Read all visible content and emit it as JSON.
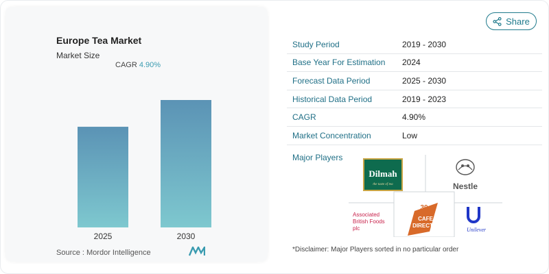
{
  "share": {
    "label": "Share",
    "icon": "share-icon"
  },
  "chart_card": {
    "title": "Europe Tea Market",
    "subtitle": "Market Size",
    "cagr_label": "CAGR",
    "cagr_value": "4.90%",
    "source": "Source : Mordor Intelligence",
    "brand": "Mordor Intelligence logo"
  },
  "chart_data": {
    "type": "bar",
    "categories": [
      "2025",
      "2030"
    ],
    "values": [
      0.79,
      1.0
    ],
    "value_note": "relative bar heights, no numeric axis shown",
    "title": "Europe Tea Market",
    "subtitle": "Market Size",
    "xlabel": "",
    "ylabel": "",
    "grid": false,
    "colors": {
      "bar_top": "#5b93b5",
      "bar_bottom": "#7ec8cf"
    }
  },
  "table": {
    "rows": [
      {
        "label": "Study Period",
        "value": "2019 - 2030"
      },
      {
        "label": "Base Year For Estimation",
        "value": "2024"
      },
      {
        "label": "Forecast Data Period",
        "value": "2025 - 2030"
      },
      {
        "label": "Historical Data Period",
        "value": "2019 - 2023"
      },
      {
        "label": "CAGR",
        "value": "4.90%"
      },
      {
        "label": "Market Concentration",
        "value": "Low"
      }
    ]
  },
  "players": {
    "label": "Major Players",
    "logos": [
      {
        "name": "Dilmah",
        "tagline": "the taste of tea"
      },
      {
        "name": "Nestle"
      },
      {
        "name": "Associated British Foods plc",
        "line1": "Associated",
        "line2": "British Foods",
        "line3": "plc"
      },
      {
        "name": "Cafedirect",
        "line1": "30",
        "line2": "CAFE",
        "line3": "DIRECT"
      },
      {
        "name": "Unilever",
        "text": "Unilever"
      }
    ],
    "disclaimer": "*Disclaimer: Major Players sorted in no particular order"
  },
  "colors": {
    "accent": "#1f7a8c",
    "label_teal": "#1f6f86",
    "dilmah_green": "#0e6b4e",
    "abf_red": "#c8234c",
    "cafedirect_orange": "#d86a2a",
    "unilever_blue": "#1f36c7"
  }
}
